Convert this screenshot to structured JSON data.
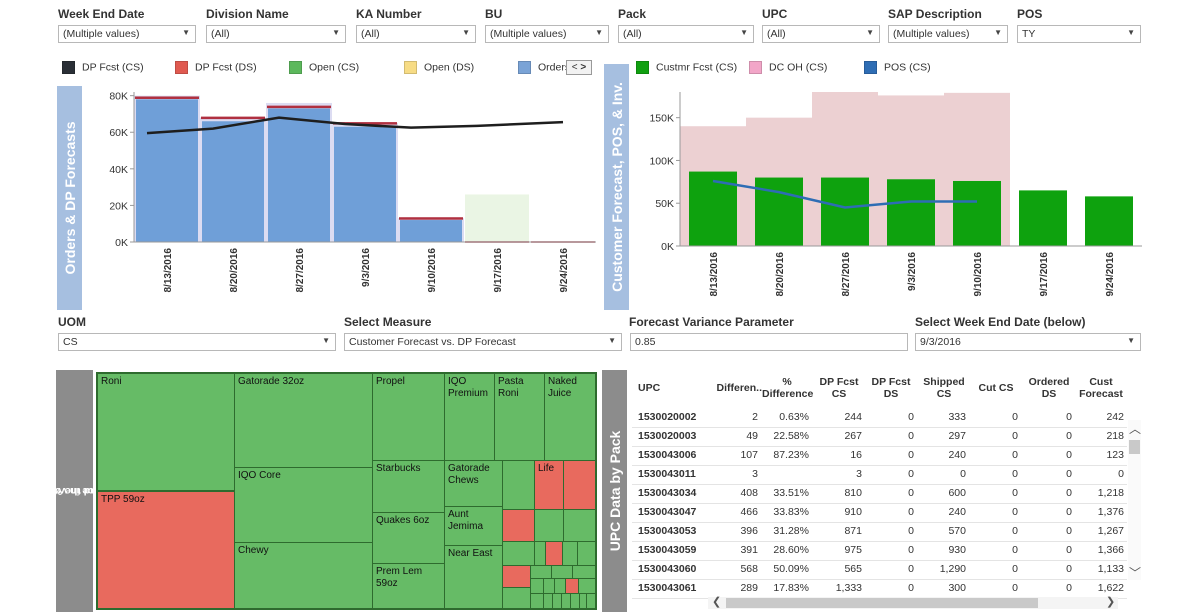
{
  "filters": [
    {
      "label": "Week End Date",
      "value": "(Multiple values)"
    },
    {
      "label": "Division Name",
      "value": "(All)"
    },
    {
      "label": "KA Number",
      "value": "(All)"
    },
    {
      "label": "BU",
      "value": "(Multiple values)"
    },
    {
      "label": "Pack",
      "value": "(All)"
    },
    {
      "label": "UPC",
      "value": "(All)"
    },
    {
      "label": "SAP Description",
      "value": "(Multiple values)"
    },
    {
      "label": "POS",
      "value": "TY"
    }
  ],
  "legend_left": [
    {
      "label": "DP Fcst (CS)",
      "color": "#2a2f36"
    },
    {
      "label": "DP Fcst (DS)",
      "color": "#e05a50"
    },
    {
      "label": "Open (CS)",
      "color": "#5cb85c"
    },
    {
      "label": "Open (DS)",
      "color": "#f7dc85"
    },
    {
      "label": "Orders",
      "color": "#7aa3d6"
    }
  ],
  "legend_right": [
    {
      "label": "Custmr Fcst (CS)",
      "color": "#10a010"
    },
    {
      "label": "DC OH (CS)",
      "color": "#f2a6c8"
    },
    {
      "label": "POS (CS)",
      "color": "#2e6db4"
    }
  ],
  "legend_pager": {
    "prev": "<",
    "next": ">"
  },
  "left_chart": {
    "title": "Orders & DP Forecasts",
    "chart_data": {
      "type": "bar",
      "categories": [
        "8/13/2016",
        "8/20/2016",
        "8/27/2016",
        "9/3/2016",
        "9/10/2016",
        "9/17/2016",
        "9/24/2016"
      ],
      "y_ticks": [
        "0K",
        "20K",
        "40K",
        "60K",
        "80K"
      ],
      "ylim": [
        0,
        82000
      ],
      "series": [
        {
          "name": "Orders",
          "values": [
            78000,
            66000,
            73000,
            63000,
            12000,
            0,
            0
          ]
        },
        {
          "name": "DP Fcst (DS)",
          "values": [
            79000,
            68000,
            74000,
            65000,
            13000,
            0,
            0
          ]
        },
        {
          "name": "DP Fcst (CS)",
          "values": [
            59500,
            62000,
            68000,
            64500,
            62500,
            63500,
            65500
          ]
        },
        {
          "name": "Open (CS)",
          "values": [
            0,
            0,
            0,
            0,
            0,
            26000,
            0
          ]
        },
        {
          "name": "Background",
          "values": [
            80000,
            68000,
            76000,
            65000,
            13000,
            0,
            0
          ]
        }
      ]
    }
  },
  "right_chart": {
    "title": "Customer Forecast, POS, & Inv.",
    "chart_data": {
      "type": "bar",
      "categories": [
        "8/13/2016",
        "8/20/2016",
        "8/27/2016",
        "9/3/2016",
        "9/10/2016",
        "9/17/2016",
        "9/24/2016"
      ],
      "y_ticks": [
        "0K",
        "50K",
        "100K",
        "150K"
      ],
      "ylim": [
        0,
        180000
      ],
      "series": [
        {
          "name": "Custmr Fcst (CS)",
          "values": [
            87000,
            80000,
            80000,
            78000,
            76000,
            65000,
            58000
          ]
        },
        {
          "name": "DC OH (CS)",
          "values": [
            140000,
            150000,
            180000,
            176000,
            179000,
            0,
            0
          ]
        },
        {
          "name": "POS (CS)",
          "values": [
            76000,
            63000,
            45000,
            52000,
            52000,
            null,
            null
          ]
        }
      ]
    }
  },
  "params": {
    "uom": {
      "label": "UOM",
      "value": "CS"
    },
    "measure": {
      "label": "Select Measure",
      "value": "Customer Forecast vs. DP Forecast"
    },
    "variance": {
      "label": "Forecast Variance Parameter",
      "value": "0.85"
    },
    "week": {
      "label": "Select Week End Date (below)",
      "value": "9/3/2016"
    }
  },
  "treemap": {
    "side_title_line1": "Use to view variance in volume between two",
    "side_title_line2": "measures and the % over/under",
    "cells": [
      {
        "label": "Roni",
        "status": "green"
      },
      {
        "label": "TPP 59oz",
        "status": "red"
      },
      {
        "label": "Gatorade 32oz",
        "status": "green"
      },
      {
        "label": "IQO Core",
        "status": "green"
      },
      {
        "label": "Chewy",
        "status": "green"
      },
      {
        "label": "Propel",
        "status": "green"
      },
      {
        "label": "Starbucks",
        "status": "green"
      },
      {
        "label": "Quakes 6oz",
        "status": "green"
      },
      {
        "label": "Prem Lem 59oz",
        "status": "green"
      },
      {
        "label": "IQO Premium",
        "status": "green"
      },
      {
        "label": "Pasta Roni",
        "status": "green"
      },
      {
        "label": "Naked Juice",
        "status": "green"
      },
      {
        "label": "Gatorade Chews",
        "status": "green"
      },
      {
        "label": "Aunt Jemima",
        "status": "green"
      },
      {
        "label": "Near East",
        "status": "green"
      },
      {
        "label": "Life",
        "status": "red"
      }
    ]
  },
  "table": {
    "side_title": "UPC Data by Pack",
    "headers": [
      "UPC",
      "Differen..",
      "% Difference",
      "DP Fcst CS",
      "DP Fcst DS",
      "Shipped CS",
      "Cut CS",
      "Ordered DS",
      "Cust Forecast"
    ],
    "rows": [
      [
        "1530020002",
        "2",
        "0.63%",
        "244",
        "0",
        "333",
        "0",
        "0",
        "242"
      ],
      [
        "1530020003",
        "49",
        "22.58%",
        "267",
        "0",
        "297",
        "0",
        "0",
        "218"
      ],
      [
        "1530043006",
        "107",
        "87.23%",
        "16",
        "0",
        "240",
        "0",
        "0",
        "123"
      ],
      [
        "1530043011",
        "3",
        "",
        "3",
        "0",
        "0",
        "0",
        "0",
        "0"
      ],
      [
        "1530043034",
        "408",
        "33.51%",
        "810",
        "0",
        "600",
        "0",
        "0",
        "1,218"
      ],
      [
        "1530043047",
        "466",
        "33.83%",
        "910",
        "0",
        "240",
        "0",
        "0",
        "1,376"
      ],
      [
        "1530043053",
        "396",
        "31.28%",
        "871",
        "0",
        "570",
        "0",
        "0",
        "1,267"
      ],
      [
        "1530043059",
        "391",
        "28.60%",
        "975",
        "0",
        "930",
        "0",
        "0",
        "1,366"
      ],
      [
        "1530043060",
        "568",
        "50.09%",
        "565",
        "0",
        "1,290",
        "0",
        "0",
        "1,133"
      ],
      [
        "1530043061",
        "289",
        "17.83%",
        "1,333",
        "0",
        "300",
        "0",
        "0",
        "1,622"
      ]
    ]
  },
  "colors": {
    "tm_green": "#66bb66",
    "tm_red": "#e86a5e"
  }
}
